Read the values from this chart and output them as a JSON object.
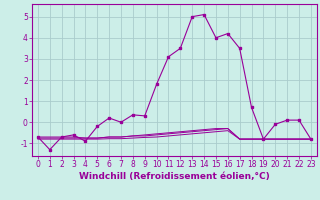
{
  "background_color": "#cceee8",
  "grid_color": "#aacccc",
  "line_color": "#990099",
  "xlim": [
    -0.5,
    23.5
  ],
  "ylim": [
    -1.6,
    5.6
  ],
  "yticks": [
    -1,
    0,
    1,
    2,
    3,
    4,
    5
  ],
  "xticks": [
    0,
    1,
    2,
    3,
    4,
    5,
    6,
    7,
    8,
    9,
    10,
    11,
    12,
    13,
    14,
    15,
    16,
    17,
    18,
    19,
    20,
    21,
    22,
    23
  ],
  "xlabel": "Windchill (Refroidissement éolien,°C)",
  "curve1_x": [
    0,
    1,
    2,
    3,
    4,
    5,
    6,
    7,
    8,
    9,
    10,
    11,
    12,
    13,
    14,
    15,
    16,
    17,
    18,
    19,
    20,
    21,
    22,
    23
  ],
  "curve1_y": [
    -0.7,
    -1.3,
    -0.7,
    -0.6,
    -0.9,
    -0.2,
    0.2,
    0.0,
    0.35,
    0.3,
    1.8,
    3.1,
    3.5,
    5.0,
    5.1,
    4.0,
    4.2,
    3.5,
    0.7,
    -0.8,
    -0.1,
    0.1,
    0.1,
    -0.8
  ],
  "curve2_x": [
    0,
    1,
    2,
    3,
    4,
    5,
    6,
    7,
    8,
    9,
    10,
    11,
    12,
    13,
    14,
    15,
    16,
    17,
    18,
    19,
    20,
    21,
    22,
    23
  ],
  "curve2_y": [
    -0.7,
    -0.7,
    -0.7,
    -0.7,
    -0.75,
    -0.75,
    -0.7,
    -0.7,
    -0.65,
    -0.65,
    -0.6,
    -0.55,
    -0.5,
    -0.45,
    -0.4,
    -0.35,
    -0.3,
    -0.8,
    -0.8,
    -0.8,
    -0.8,
    -0.8,
    -0.8,
    -0.8
  ],
  "curve3_x": [
    0,
    1,
    2,
    3,
    4,
    5,
    6,
    7,
    8,
    9,
    10,
    11,
    12,
    13,
    14,
    15,
    16,
    17,
    18,
    19,
    20,
    21,
    22,
    23
  ],
  "curve3_y": [
    -0.75,
    -0.75,
    -0.75,
    -0.75,
    -0.75,
    -0.75,
    -0.7,
    -0.7,
    -0.65,
    -0.6,
    -0.55,
    -0.5,
    -0.45,
    -0.4,
    -0.35,
    -0.3,
    -0.3,
    -0.8,
    -0.8,
    -0.8,
    -0.8,
    -0.8,
    -0.8,
    -0.8
  ],
  "curve4_x": [
    0,
    1,
    2,
    3,
    4,
    5,
    6,
    7,
    8,
    9,
    10,
    11,
    12,
    13,
    14,
    15,
    16,
    17,
    18,
    19,
    20,
    21,
    22,
    23
  ],
  "curve4_y": [
    -0.8,
    -0.8,
    -0.8,
    -0.8,
    -0.8,
    -0.8,
    -0.78,
    -0.78,
    -0.75,
    -0.72,
    -0.7,
    -0.65,
    -0.6,
    -0.55,
    -0.5,
    -0.45,
    -0.4,
    -0.8,
    -0.8,
    -0.8,
    -0.8,
    -0.8,
    -0.8,
    -0.8
  ],
  "tick_fontsize": 5.5,
  "label_fontsize": 6.5
}
